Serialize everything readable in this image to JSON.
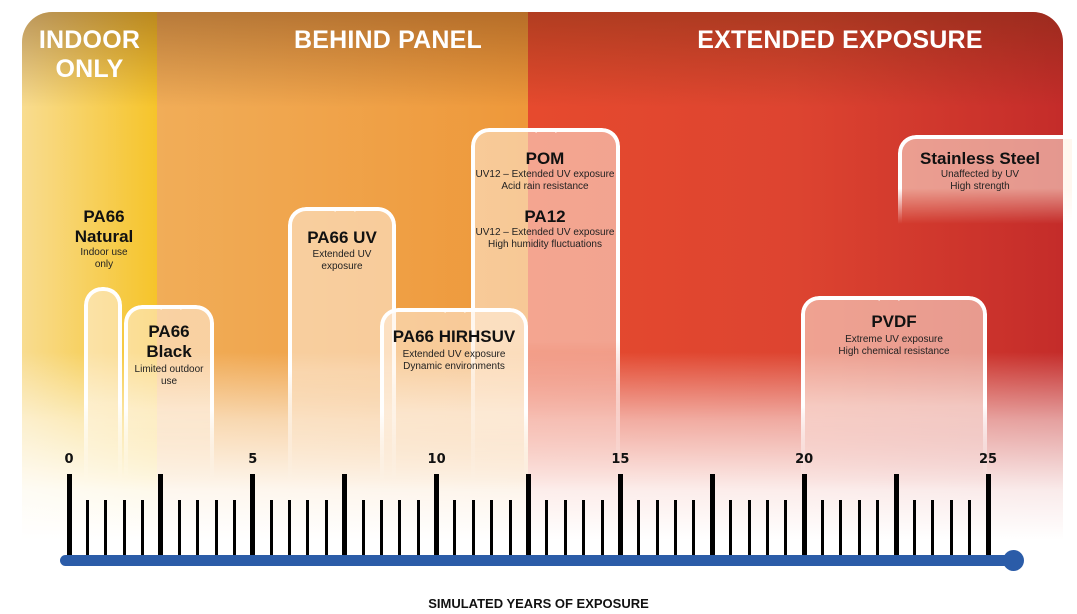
{
  "zones": [
    {
      "label": "INDOOR ONLY",
      "color": "#f6c42a"
    },
    {
      "label": "BEHIND PANEL",
      "color": "#ee983a"
    },
    {
      "label": "EXTENDED EXPOSURE",
      "color": "#dd4430"
    }
  ],
  "materials": [
    {
      "name": "PA66 Natural",
      "desc": [
        "Indoor use only"
      ]
    },
    {
      "name": "PA66 Black",
      "desc": [
        "Limited outdoor use"
      ]
    },
    {
      "name": "PA66 UV",
      "desc": [
        "Extended UV exposure"
      ]
    },
    {
      "name": "PA66 HIRHSUV",
      "desc": [
        "Extended UV exposure",
        "Dynamic environments"
      ]
    },
    {
      "name": "POM",
      "desc": [
        "UV12 – Extended UV exposure",
        "Acid rain resistance"
      ]
    },
    {
      "name": "PA12",
      "desc": [
        "UV12 – Extended UV exposure",
        "High humidity fluctuations"
      ]
    },
    {
      "name": "PVDF",
      "desc": [
        "Extreme UV exposure",
        "High chemical resistance"
      ]
    },
    {
      "name": "Stainless Steel",
      "desc": [
        "Unaffected by UV",
        "High strength"
      ]
    }
  ],
  "axis": {
    "label": "SIMULATED YEARS OF EXPOSURE",
    "min": 0,
    "max": 25,
    "tick_labels": [
      "0",
      "5",
      "10",
      "15",
      "20",
      "25"
    ],
    "major_step": 2.5,
    "minor_step": 0.5,
    "color": "#2b5ca8"
  }
}
